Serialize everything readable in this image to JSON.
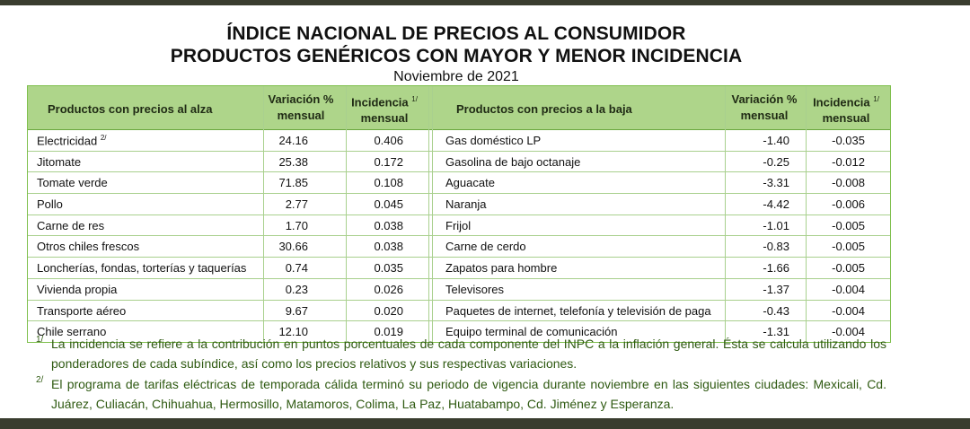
{
  "header": {
    "title_line1": "ÍNDICE NACIONAL DE PRECIOS AL CONSUMIDOR",
    "title_line2": "PRODUCTOS GENÉRICOS CON MAYOR Y MENOR INCIDENCIA",
    "subtitle": "Noviembre de 2021"
  },
  "table": {
    "columns": {
      "up_products": "Productos con precios al alza",
      "up_variation_1": "Variación %",
      "up_variation_2": "mensual",
      "up_incidence_1": "Incidencia",
      "up_incidence_2": "mensual",
      "down_products": "Productos con precios a la baja",
      "down_variation_1": "Variación %",
      "down_variation_2": "mensual",
      "down_incidence_1": "Incidencia",
      "down_incidence_2": "mensual",
      "incidence_note": "1/"
    },
    "rows": [
      {
        "up": "Electricidad",
        "up_note": "2/",
        "up_var": "24.16",
        "up_inc": "0.406",
        "down": "Gas doméstico LP",
        "down_var": "-1.40",
        "down_inc": "-0.035"
      },
      {
        "up": "Jitomate",
        "up_note": "",
        "up_var": "25.38",
        "up_inc": "0.172",
        "down": "Gasolina de bajo octanaje",
        "down_var": "-0.25",
        "down_inc": "-0.012"
      },
      {
        "up": "Tomate verde",
        "up_note": "",
        "up_var": "71.85",
        "up_inc": "0.108",
        "down": "Aguacate",
        "down_var": "-3.31",
        "down_inc": "-0.008"
      },
      {
        "up": "Pollo",
        "up_note": "",
        "up_var": "2.77",
        "up_inc": "0.045",
        "down": "Naranja",
        "down_var": "-4.42",
        "down_inc": "-0.006"
      },
      {
        "up": "Carne de res",
        "up_note": "",
        "up_var": "1.70",
        "up_inc": "0.038",
        "down": "Frijol",
        "down_var": "-1.01",
        "down_inc": "-0.005"
      },
      {
        "up": "Otros chiles frescos",
        "up_note": "",
        "up_var": "30.66",
        "up_inc": "0.038",
        "down": "Carne de cerdo",
        "down_var": "-0.83",
        "down_inc": "-0.005"
      },
      {
        "up": "Loncherías, fondas, torterías y taquerías",
        "up_note": "",
        "up_var": "0.74",
        "up_inc": "0.035",
        "down": "Zapatos para hombre",
        "down_var": "-1.66",
        "down_inc": "-0.005"
      },
      {
        "up": "Vivienda propia",
        "up_note": "",
        "up_var": "0.23",
        "up_inc": "0.026",
        "down": "Televisores",
        "down_var": "-1.37",
        "down_inc": "-0.004"
      },
      {
        "up": "Transporte aéreo",
        "up_note": "",
        "up_var": "9.67",
        "up_inc": "0.020",
        "down": "Paquetes de internet, telefonía y televisión de paga",
        "down_var": "-0.43",
        "down_inc": "-0.004"
      },
      {
        "up": "Chile serrano",
        "up_note": "",
        "up_var": "12.10",
        "up_inc": "0.019",
        "down": "Equipo terminal de comunicación",
        "down_var": "-1.31",
        "down_inc": "-0.004"
      }
    ]
  },
  "notes": [
    {
      "num": "1/",
      "text": "La incidencia se refiere a la contribución en puntos porcentuales de cada componente del INPC a la inflación general. Ésta se calcula utilizando los ponderadores de cada subíndice, así como los precios relativos y sus respectivas variaciones."
    },
    {
      "num": "2/",
      "text": "El programa de tarifas eléctricas de temporada cálida terminó su periodo de vigencia durante noviembre en las siguientes ciudades: Mexicali, Cd. Juárez, Culiacán, Chihuahua, Hermosillo, Matamoros, Colima, La Paz, Huatabampo, Cd. Jiménez y Esperanza."
    }
  ],
  "colors": {
    "header_fill": "#aed58a",
    "border": "#7fbf4d",
    "note_text": "#2f5a12",
    "frame": "#3a3d2f"
  }
}
